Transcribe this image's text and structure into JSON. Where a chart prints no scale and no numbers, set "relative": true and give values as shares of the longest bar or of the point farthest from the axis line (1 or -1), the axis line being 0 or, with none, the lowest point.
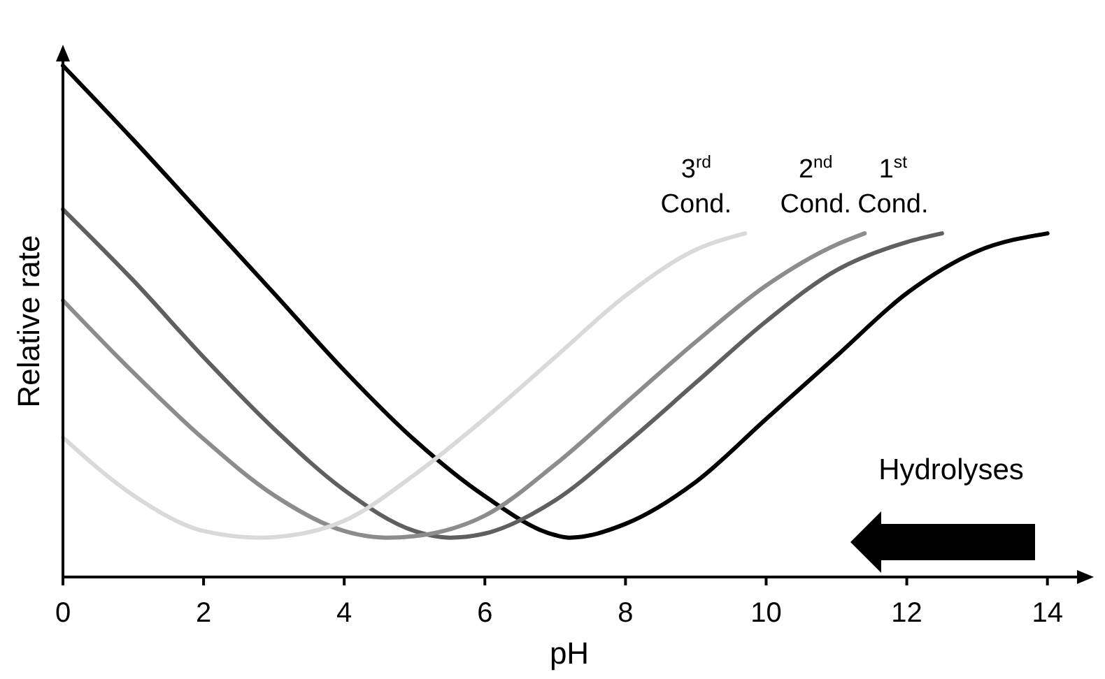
{
  "chart_data": {
    "type": "line",
    "relative": true,
    "xlabel": "pH",
    "ylabel": "Relative rate",
    "xlim": [
      0,
      14.6
    ],
    "xticks": [
      0,
      2,
      4,
      6,
      8,
      10,
      12,
      14
    ],
    "legend": false,
    "grid": false,
    "marker": "none",
    "line_style": "solid",
    "annotations": [
      "Hydrolyses"
    ],
    "series": [
      {
        "color": "#000000",
        "x": [
          0,
          1,
          2,
          3,
          4,
          5,
          6,
          7,
          7.2,
          8,
          9,
          10,
          11,
          12,
          13,
          14
        ],
        "values": [
          1.0,
          0.855,
          0.705,
          0.555,
          0.404,
          0.268,
          0.158,
          0.082,
          0.077,
          0.104,
          0.186,
          0.309,
          0.432,
          0.555,
          0.637,
          0.672
        ]
      },
      {
        "name": "1$^{st}$ Cond.",
        "color": "#5f5f5f",
        "x": [
          0,
          1,
          2,
          3,
          4,
          5,
          5.5,
          6,
          7,
          8,
          9,
          10,
          11,
          12,
          12.5
        ],
        "values": [
          0.719,
          0.58,
          0.43,
          0.29,
          0.17,
          0.09,
          0.077,
          0.085,
          0.15,
          0.26,
          0.38,
          0.5,
          0.6,
          0.655,
          0.672
        ]
      },
      {
        "name": "2$^{nd}$ Cond.",
        "color": "#8c8c8c",
        "x": [
          0,
          1,
          2,
          3,
          4,
          4.6,
          5,
          6,
          7,
          8,
          9,
          10,
          11,
          11.4
        ],
        "values": [
          0.541,
          0.4,
          0.27,
          0.16,
          0.09,
          0.077,
          0.08,
          0.12,
          0.22,
          0.34,
          0.46,
          0.57,
          0.65,
          0.672
        ]
      },
      {
        "name": "3$^{rd}$ Cond.",
        "color": "#d9d9d9",
        "x": [
          0,
          1,
          2,
          2.8,
          3,
          4,
          5,
          6,
          7,
          8,
          9,
          9.7
        ],
        "values": [
          0.273,
          0.16,
          0.09,
          0.077,
          0.078,
          0.11,
          0.2,
          0.31,
          0.43,
          0.55,
          0.64,
          0.672
        ]
      }
    ]
  }
}
